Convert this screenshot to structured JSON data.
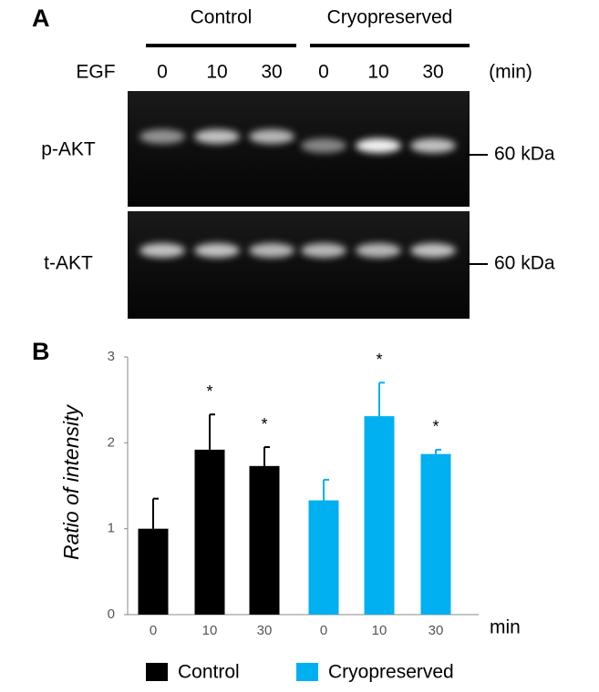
{
  "blot": {
    "panel": "A",
    "treatment": "EGF",
    "unit": "(min)",
    "conditions": [
      "Control",
      "Cryopreserved"
    ],
    "lanes": [
      "0",
      "10",
      "30",
      "0",
      "10",
      "30"
    ],
    "rows": [
      {
        "label": "p-AKT",
        "marker": "60 kDa"
      },
      {
        "label": "t-AKT",
        "marker": "60 kDa"
      }
    ]
  },
  "chart_data": {
    "type": "bar",
    "panel": "B",
    "y_label": "Ratio of intensity",
    "x_label": "min",
    "ylim": [
      0,
      3
    ],
    "yticks": [
      0,
      1,
      2,
      3
    ],
    "marker": "*",
    "groups": [
      {
        "name": "Control",
        "color": "#000000",
        "categories": [
          "0",
          "10",
          "30"
        ],
        "values": [
          1.0,
          1.92,
          1.73
        ],
        "errors": [
          0.35,
          0.41,
          0.22
        ],
        "significant": [
          false,
          true,
          true
        ]
      },
      {
        "name": "Cryopreserved",
        "color": "#00b0f0",
        "categories": [
          "0",
          "10",
          "30"
        ],
        "values": [
          1.33,
          2.31,
          1.87
        ],
        "errors": [
          0.24,
          0.39,
          0.05
        ],
        "significant": [
          false,
          true,
          true
        ]
      }
    ]
  }
}
